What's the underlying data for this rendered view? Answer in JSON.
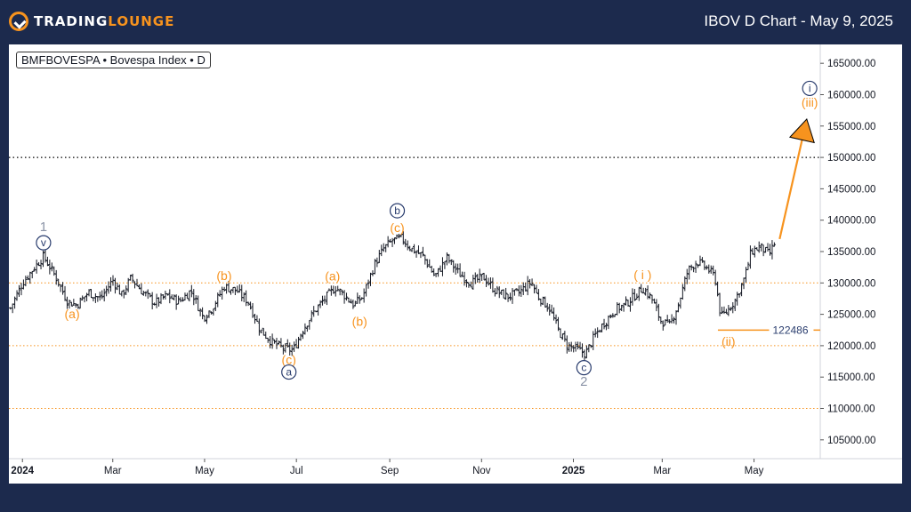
{
  "header": {
    "brand_left": "TRADING",
    "brand_right": "LOUNGE",
    "chart_title": "IBOV D Chart - May 9, 2025"
  },
  "symbol_label": "BMFBOVESPA • Bovespa Index • D",
  "colors": {
    "orange": "#f7931e",
    "navy": "#1c2a4d",
    "wave_blue": "#2a3d6e",
    "wave_gray": "#8a93a6",
    "candle": "#131722"
  },
  "chart_data": {
    "type": "ohlc",
    "title": "IBOV D Chart - May 9, 2025",
    "ylim": [
      102000,
      168000
    ],
    "y_ticks": [
      "165000.00",
      "160000.00",
      "155000.00",
      "150000.00",
      "145000.00",
      "140000.00",
      "135000.00",
      "130000.00",
      "125000.00",
      "120000.00",
      "115000.00",
      "110000.00",
      "105000.00"
    ],
    "x_ticks": [
      {
        "label": "2024",
        "bold": true,
        "day": 0
      },
      {
        "label": "Mar",
        "bold": false,
        "day": 60
      },
      {
        "label": "May",
        "bold": false,
        "day": 121
      },
      {
        "label": "Jul",
        "bold": false,
        "day": 182
      },
      {
        "label": "Sep",
        "bold": false,
        "day": 244
      },
      {
        "label": "Nov",
        "bold": false,
        "day": 305
      },
      {
        "label": "2025",
        "bold": true,
        "day": 366
      },
      {
        "label": "Mar",
        "bold": false,
        "day": 425
      },
      {
        "label": "May",
        "bold": false,
        "day": 486
      }
    ],
    "x_range_days": [
      -9,
      530
    ],
    "horizontal_levels": [
      {
        "value": 150000,
        "style": "black-dotted"
      },
      {
        "value": 130000,
        "style": "orange-dotted"
      },
      {
        "value": 120000,
        "style": "orange-dotted"
      },
      {
        "value": 110000,
        "style": "orange-dotted"
      }
    ],
    "support_line": {
      "value": 122486,
      "label": "122486",
      "from_day": 462,
      "to_day": 496
    },
    "price_path": [
      {
        "d": -8,
        "v": 126000
      },
      {
        "d": 0,
        "v": 130000
      },
      {
        "d": 8,
        "v": 132500
      },
      {
        "d": 14,
        "v": 134200
      },
      {
        "d": 22,
        "v": 131000
      },
      {
        "d": 30,
        "v": 127000
      },
      {
        "d": 36,
        "v": 126500
      },
      {
        "d": 44,
        "v": 128500
      },
      {
        "d": 52,
        "v": 127500
      },
      {
        "d": 60,
        "v": 130500
      },
      {
        "d": 66,
        "v": 128000
      },
      {
        "d": 72,
        "v": 130800
      },
      {
        "d": 80,
        "v": 128500
      },
      {
        "d": 88,
        "v": 126800
      },
      {
        "d": 96,
        "v": 128000
      },
      {
        "d": 104,
        "v": 127000
      },
      {
        "d": 112,
        "v": 128800
      },
      {
        "d": 120,
        "v": 124500
      },
      {
        "d": 126,
        "v": 126000
      },
      {
        "d": 134,
        "v": 129400
      },
      {
        "d": 142,
        "v": 128800
      },
      {
        "d": 150,
        "v": 127000
      },
      {
        "d": 158,
        "v": 122500
      },
      {
        "d": 166,
        "v": 120500
      },
      {
        "d": 174,
        "v": 119500
      },
      {
        "d": 180,
        "v": 119300
      },
      {
        "d": 186,
        "v": 122500
      },
      {
        "d": 194,
        "v": 125500
      },
      {
        "d": 202,
        "v": 127800
      },
      {
        "d": 208,
        "v": 129300
      },
      {
        "d": 214,
        "v": 128000
      },
      {
        "d": 220,
        "v": 126500
      },
      {
        "d": 226,
        "v": 127800
      },
      {
        "d": 234,
        "v": 133000
      },
      {
        "d": 240,
        "v": 135500
      },
      {
        "d": 246,
        "v": 136800
      },
      {
        "d": 252,
        "v": 137100
      },
      {
        "d": 258,
        "v": 135500
      },
      {
        "d": 266,
        "v": 134300
      },
      {
        "d": 274,
        "v": 131000
      },
      {
        "d": 282,
        "v": 134000
      },
      {
        "d": 290,
        "v": 131500
      },
      {
        "d": 298,
        "v": 130000
      },
      {
        "d": 306,
        "v": 131000
      },
      {
        "d": 314,
        "v": 128800
      },
      {
        "d": 322,
        "v": 127800
      },
      {
        "d": 330,
        "v": 128500
      },
      {
        "d": 338,
        "v": 130200
      },
      {
        "d": 342,
        "v": 128000
      },
      {
        "d": 350,
        "v": 126000
      },
      {
        "d": 356,
        "v": 122500
      },
      {
        "d": 362,
        "v": 120000
      },
      {
        "d": 368,
        "v": 119500
      },
      {
        "d": 374,
        "v": 118700
      },
      {
        "d": 380,
        "v": 121500
      },
      {
        "d": 386,
        "v": 123500
      },
      {
        "d": 394,
        "v": 125800
      },
      {
        "d": 400,
        "v": 126500
      },
      {
        "d": 406,
        "v": 127800
      },
      {
        "d": 412,
        "v": 129200
      },
      {
        "d": 418,
        "v": 127500
      },
      {
        "d": 424,
        "v": 124000
      },
      {
        "d": 430,
        "v": 123200
      },
      {
        "d": 436,
        "v": 126800
      },
      {
        "d": 442,
        "v": 132000
      },
      {
        "d": 448,
        "v": 133400
      },
      {
        "d": 454,
        "v": 132500
      },
      {
        "d": 460,
        "v": 131000
      },
      {
        "d": 464,
        "v": 124500
      },
      {
        "d": 468,
        "v": 125500
      },
      {
        "d": 474,
        "v": 127500
      },
      {
        "d": 480,
        "v": 131000
      },
      {
        "d": 484,
        "v": 135000
      },
      {
        "d": 490,
        "v": 135800
      },
      {
        "d": 496,
        "v": 134500
      },
      {
        "d": 500,
        "v": 136500
      }
    ],
    "projection_arrow": {
      "from": {
        "d": 503,
        "v": 137000
      },
      "to": {
        "d": 520,
        "v": 155000
      }
    },
    "wave_labels": [
      {
        "text": "1",
        "d": 14,
        "v": 139000,
        "style": "gray-plain"
      },
      {
        "text": "v",
        "d": 14,
        "v": 136400,
        "style": "blue-circle"
      },
      {
        "text": "(a)",
        "d": 33,
        "v": 125100,
        "style": "orange-plain"
      },
      {
        "text": "(b)",
        "d": 134,
        "v": 131200,
        "style": "orange-plain"
      },
      {
        "text": "(c)",
        "d": 177,
        "v": 117800,
        "style": "orange-plain"
      },
      {
        "text": "a",
        "d": 177,
        "v": 115800,
        "style": "blue-circle"
      },
      {
        "text": "(a)",
        "d": 206,
        "v": 131100,
        "style": "orange-plain"
      },
      {
        "text": "(b)",
        "d": 224,
        "v": 123900,
        "style": "orange-plain"
      },
      {
        "text": "b",
        "d": 249,
        "v": 141500,
        "style": "blue-circle"
      },
      {
        "text": "(c)",
        "d": 249,
        "v": 138800,
        "style": "orange-plain"
      },
      {
        "text": "c",
        "d": 373,
        "v": 116500,
        "style": "blue-circle"
      },
      {
        "text": "2",
        "d": 373,
        "v": 114300,
        "style": "gray-plain"
      },
      {
        "text": "( i )",
        "d": 412,
        "v": 131300,
        "style": "orange-plain"
      },
      {
        "text": "(ii)",
        "d": 469,
        "v": 120700,
        "style": "orange-plain"
      },
      {
        "text": "i",
        "d": 523,
        "v": 161000,
        "style": "blue-circle"
      },
      {
        "text": "(iii)",
        "d": 523,
        "v": 158800,
        "style": "orange-plain"
      }
    ]
  }
}
